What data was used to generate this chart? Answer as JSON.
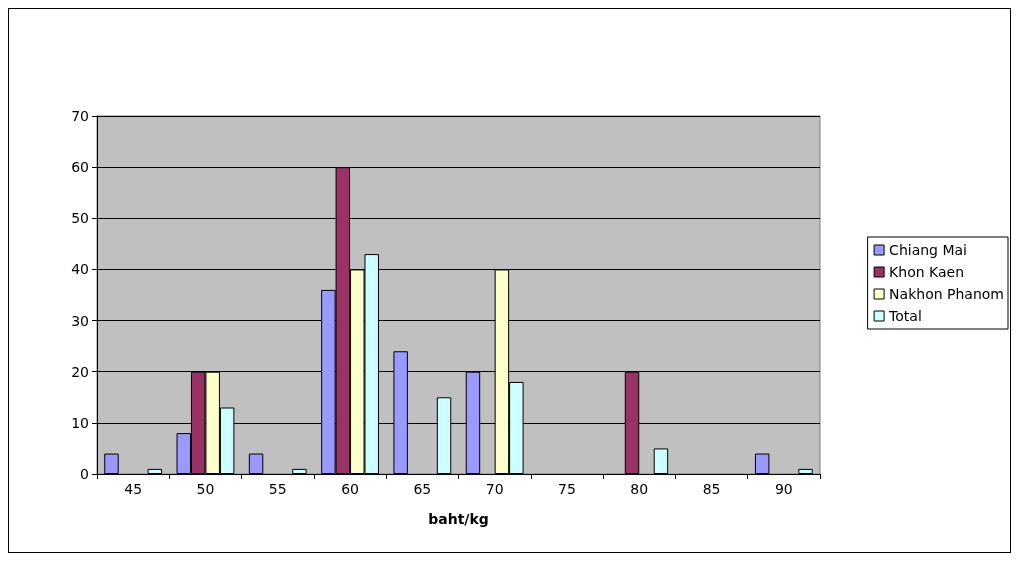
{
  "chart_data": {
    "type": "bar",
    "xlabel": "baht/kg",
    "categories": [
      "45",
      "50",
      "55",
      "60",
      "65",
      "70",
      "75",
      "80",
      "85",
      "90"
    ],
    "series": [
      {
        "name": "Chiang Mai",
        "color": "#9999ff",
        "values": [
          4,
          8,
          4,
          36,
          24,
          20,
          null,
          null,
          null,
          4
        ]
      },
      {
        "name": "Khon Kaen",
        "color": "#993366",
        "values": [
          null,
          20,
          null,
          60,
          null,
          null,
          null,
          20,
          null,
          null
        ]
      },
      {
        "name": "Nakhon Phanom",
        "color": "#ffffcc",
        "values": [
          null,
          20,
          null,
          40,
          null,
          40,
          null,
          null,
          null,
          null
        ]
      },
      {
        "name": "Total",
        "color": "#ccffff",
        "values": [
          1,
          13,
          1,
          43,
          15,
          18,
          null,
          5,
          null,
          1
        ]
      }
    ],
    "ylim": [
      0,
      70
    ],
    "yticks": [
      0,
      10,
      20,
      30,
      40,
      50,
      60,
      70
    ],
    "grid": "y",
    "legend": "right"
  }
}
